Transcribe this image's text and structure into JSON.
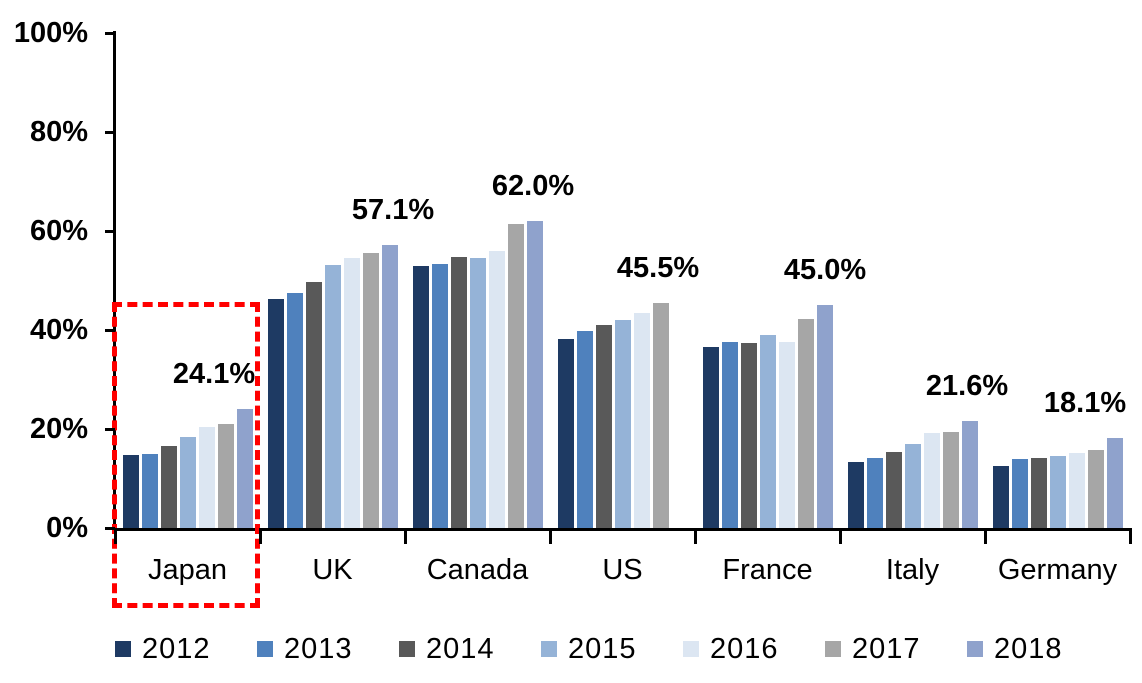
{
  "chart_data": {
    "type": "bar",
    "title": "",
    "xlabel": "",
    "ylabel": "",
    "ylim": [
      0,
      100
    ],
    "grid": false,
    "legend_position": "bottom",
    "categories": [
      "Japan",
      "UK",
      "Canada",
      "US",
      "France",
      "Italy",
      "Germany"
    ],
    "series": [
      {
        "name": "2012",
        "color": "#1E3A63",
        "values": [
          14.8,
          46.2,
          53.0,
          38.2,
          36.5,
          13.4,
          12.6
        ]
      },
      {
        "name": "2013",
        "color": "#4F81BD",
        "values": [
          15.0,
          47.5,
          53.4,
          39.8,
          37.6,
          14.1,
          13.9
        ]
      },
      {
        "name": "2014",
        "color": "#595959",
        "values": [
          16.5,
          49.8,
          54.8,
          41.0,
          37.4,
          15.4,
          14.2
        ]
      },
      {
        "name": "2015",
        "color": "#95B3D7",
        "values": [
          18.4,
          53.1,
          54.6,
          42.1,
          39.0,
          16.9,
          14.6
        ]
      },
      {
        "name": "2016",
        "color": "#DCE6F2",
        "values": [
          20.4,
          54.5,
          56.0,
          43.5,
          37.5,
          19.1,
          15.1
        ]
      },
      {
        "name": "2017",
        "color": "#A6A6A6",
        "values": [
          21.0,
          55.6,
          61.4,
          45.5,
          42.2,
          19.3,
          15.8
        ]
      },
      {
        "name": "2018",
        "color": "#8FA2CC",
        "values": [
          24.1,
          57.1,
          62.0,
          null,
          45.0,
          21.6,
          18.1
        ]
      }
    ],
    "y_ticks": [
      {
        "label": "0%",
        "value": 0
      },
      {
        "label": "20%",
        "value": 20
      },
      {
        "label": "40%",
        "value": 40
      },
      {
        "label": "60%",
        "value": 60
      },
      {
        "label": "80%",
        "value": 80
      },
      {
        "label": "100%",
        "value": 100
      }
    ],
    "annotations": [
      {
        "category": "Japan",
        "text": "24.1%",
        "value": 24.1
      },
      {
        "category": "UK",
        "text": "57.1%",
        "value": 57.1
      },
      {
        "category": "Canada",
        "text": "62.0%",
        "value": 62.0
      },
      {
        "category": "US",
        "text": "45.5%",
        "value": 45.5
      },
      {
        "category": "France",
        "text": "45.0%",
        "value": 45.0
      },
      {
        "category": "Italy",
        "text": "21.6%",
        "value": 21.6
      },
      {
        "category": "Germany",
        "text": "18.1%",
        "value": 18.1
      }
    ],
    "highlight": {
      "category": "Japan",
      "style": "dashed-box",
      "color": "#FF0000"
    }
  }
}
